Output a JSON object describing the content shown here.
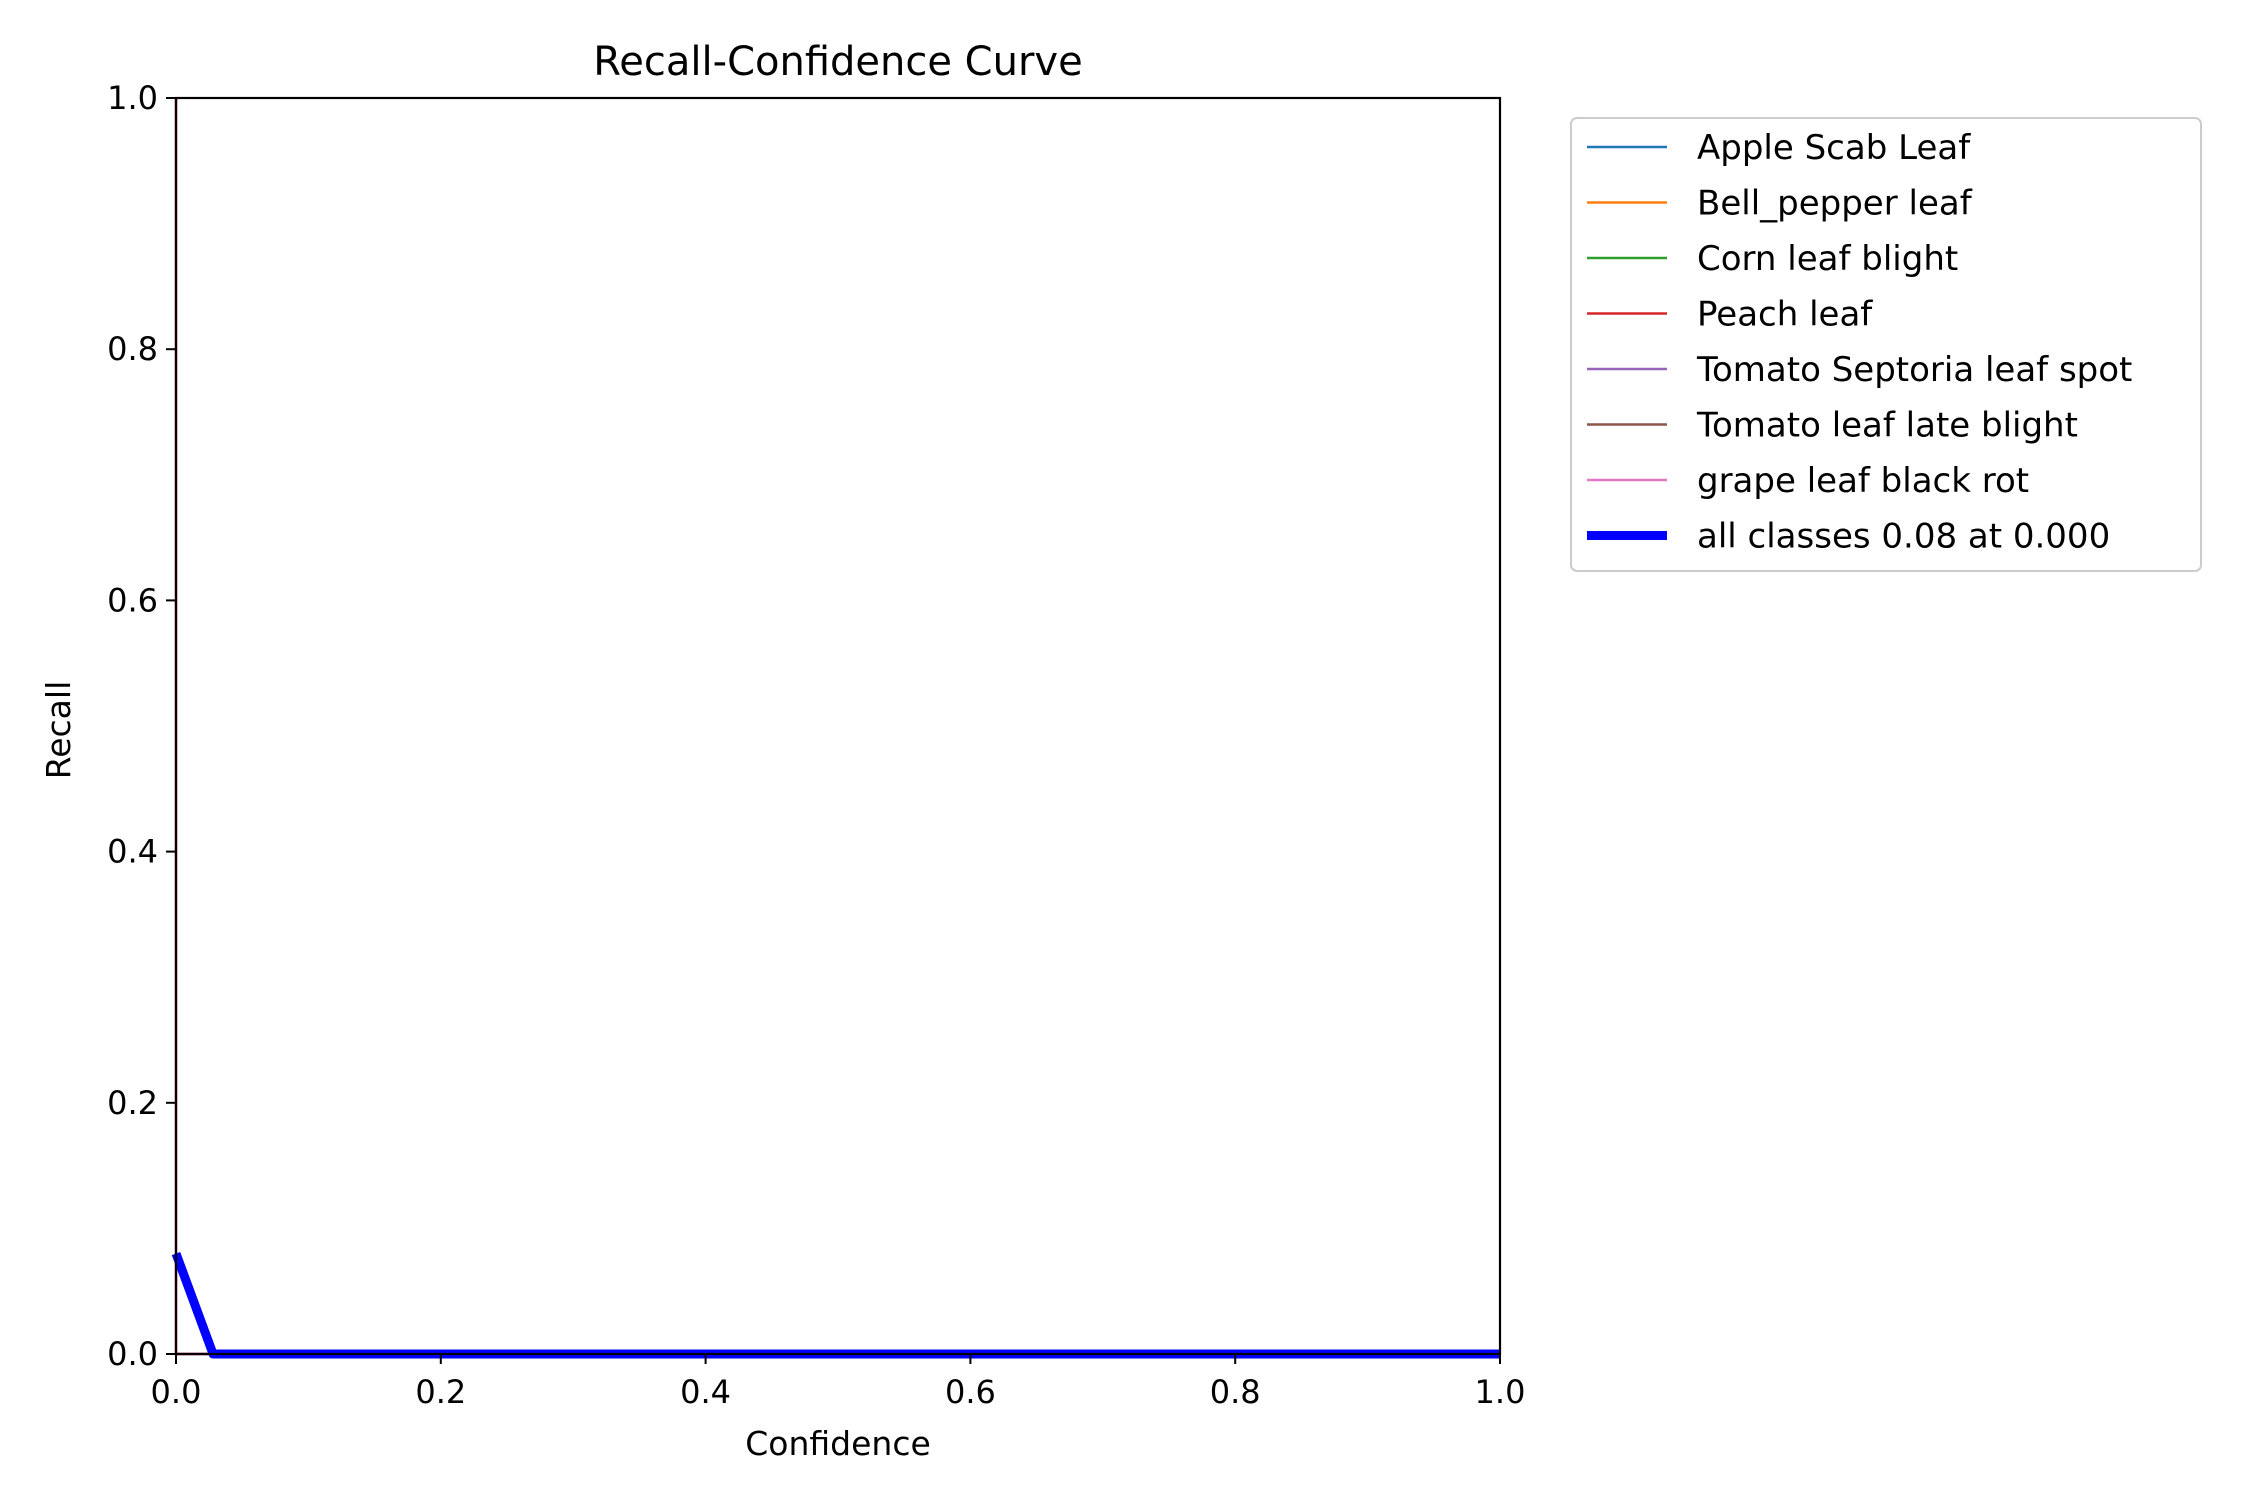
{
  "chart_data": {
    "type": "line",
    "title": "Recall-Confidence Curve",
    "xlabel": "Confidence",
    "ylabel": "Recall",
    "xlim": [
      0,
      1
    ],
    "ylim": [
      0,
      1
    ],
    "xticks": [
      0.0,
      0.2,
      0.4,
      0.6,
      0.8,
      1.0
    ],
    "yticks": [
      0.0,
      0.2,
      0.4,
      0.6,
      0.8,
      1.0
    ],
    "xtick_labels": [
      "0.0",
      "0.2",
      "0.4",
      "0.6",
      "0.8",
      "1.0"
    ],
    "ytick_labels": [
      "0.0",
      "0.2",
      "0.4",
      "0.6",
      "0.8",
      "1.0"
    ],
    "grid": false,
    "legend_placement": "outside-top-right",
    "series": [
      {
        "name": "Apple Scab Leaf",
        "color": "#1f77b4",
        "width": "thin",
        "x": [
          0,
          1
        ],
        "y": [
          0,
          0
        ]
      },
      {
        "name": "Bell_pepper leaf",
        "color": "#ff7f0e",
        "width": "thin",
        "x": [
          0,
          1
        ],
        "y": [
          0,
          0
        ]
      },
      {
        "name": "Corn leaf blight",
        "color": "#2ca02c",
        "width": "thin",
        "x": [
          0,
          1
        ],
        "y": [
          0,
          0
        ]
      },
      {
        "name": "Peach leaf",
        "color": "#d62728",
        "width": "thin",
        "x": [
          0,
          0,
          1
        ],
        "y": [
          1,
          0,
          0
        ]
      },
      {
        "name": "Tomato Septoria leaf spot",
        "color": "#9467bd",
        "width": "thin",
        "x": [
          0,
          1
        ],
        "y": [
          0,
          0
        ]
      },
      {
        "name": "Tomato leaf late blight",
        "color": "#8c564b",
        "width": "thin",
        "x": [
          0,
          1
        ],
        "y": [
          0,
          0
        ]
      },
      {
        "name": "grape leaf black rot",
        "color": "#e377c2",
        "width": "thin",
        "x": [
          0,
          0,
          1
        ],
        "y": [
          1,
          0,
          0
        ]
      },
      {
        "name": "all classes 0.08 at 0.000",
        "color": "#0000ff",
        "width": "thick",
        "x": [
          0,
          0.028,
          1
        ],
        "y": [
          0.08,
          0,
          0
        ]
      }
    ]
  }
}
